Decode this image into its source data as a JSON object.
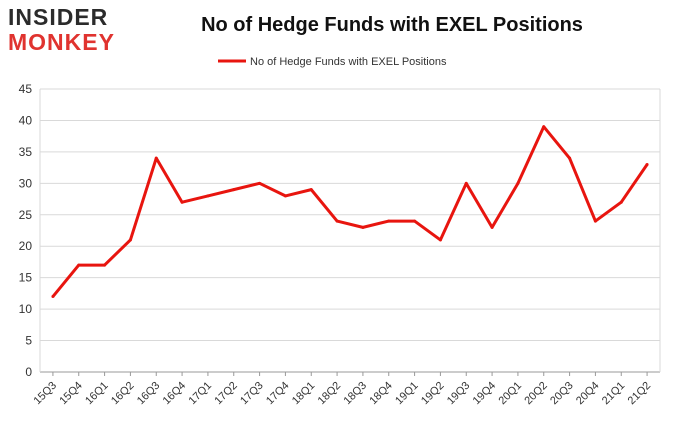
{
  "logo": {
    "line1": "INSIDER",
    "line2": "MONKEY"
  },
  "colors": {
    "series": "#e8150f",
    "grid": "#d9d9d9",
    "axis": "#999999",
    "logo_red": "#e0332f"
  },
  "chart_data": {
    "type": "line",
    "title": "No of Hedge Funds with EXEL Positions",
    "xlabel": "",
    "ylabel": "",
    "ylim": [
      0,
      45
    ],
    "yticks": [
      0,
      5,
      10,
      15,
      20,
      25,
      30,
      35,
      40,
      45
    ],
    "grid": "horizontal",
    "legend_position": "top-center",
    "categories": [
      "15Q3",
      "15Q4",
      "16Q1",
      "16Q2",
      "16Q3",
      "16Q4",
      "17Q1",
      "17Q2",
      "17Q3",
      "17Q4",
      "18Q1",
      "18Q2",
      "18Q3",
      "18Q4",
      "19Q1",
      "19Q2",
      "19Q3",
      "19Q4",
      "20Q1",
      "20Q2",
      "20Q3",
      "20Q4",
      "21Q1",
      "21Q2"
    ],
    "series": [
      {
        "name": "No of Hedge Funds with EXEL Positions",
        "values": [
          12,
          17,
          17,
          21,
          34,
          27,
          28,
          29,
          30,
          28,
          29,
          24,
          23,
          24,
          24,
          21,
          30,
          23,
          30,
          39,
          34,
          24,
          27,
          33
        ]
      }
    ]
  }
}
